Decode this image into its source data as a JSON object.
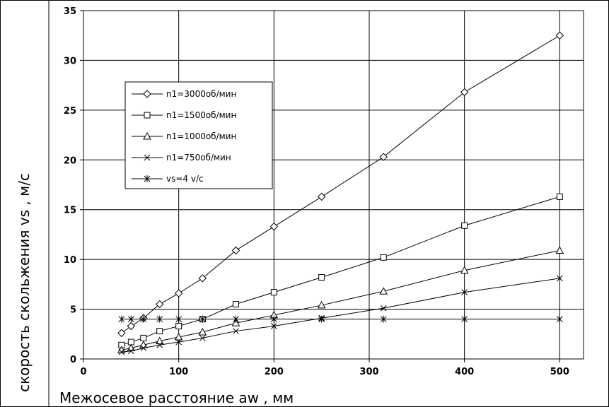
{
  "chart_data": {
    "type": "line",
    "title": "",
    "xlabel": "Межосевое расстояние aw , мм",
    "ylabel": "скорость скольжения vs , м/с",
    "xlim": [
      0,
      525
    ],
    "ylim": [
      0,
      35
    ],
    "x_ticks": [
      0,
      100,
      200,
      300,
      400,
      500
    ],
    "y_ticks": [
      0,
      5,
      10,
      15,
      20,
      25,
      30,
      35
    ],
    "grid": true,
    "legend_position": "upper-left",
    "series": [
      {
        "name": "n1=3000об/мин",
        "marker": "diamond",
        "x": [
          40,
          50,
          63,
          80,
          100,
          125,
          160,
          200,
          250,
          315,
          400,
          500
        ],
        "y": [
          2.6,
          3.3,
          4.1,
          5.5,
          6.6,
          8.1,
          10.9,
          13.3,
          16.3,
          20.3,
          26.8,
          32.5
        ]
      },
      {
        "name": "n1=1500об/мин",
        "marker": "square",
        "x": [
          40,
          50,
          63,
          80,
          100,
          125,
          160,
          200,
          250,
          315,
          400,
          500
        ],
        "y": [
          1.4,
          1.7,
          2.1,
          2.8,
          3.3,
          4.0,
          5.5,
          6.7,
          8.2,
          10.2,
          13.4,
          16.3
        ]
      },
      {
        "name": "n1=1000об/мин",
        "marker": "triangle",
        "x": [
          40,
          50,
          63,
          80,
          100,
          125,
          160,
          200,
          250,
          315,
          400,
          500
        ],
        "y": [
          0.9,
          1.1,
          1.4,
          1.8,
          2.2,
          2.7,
          3.6,
          4.4,
          5.4,
          6.8,
          8.9,
          10.9
        ]
      },
      {
        "name": "n1=750об/мин",
        "marker": "x",
        "x": [
          40,
          50,
          63,
          80,
          100,
          125,
          160,
          200,
          250,
          315,
          400,
          500
        ],
        "y": [
          0.7,
          0.8,
          1.1,
          1.4,
          1.7,
          2.1,
          2.8,
          3.3,
          4.1,
          5.1,
          6.7,
          8.1
        ]
      },
      {
        "name": "vs=4 v/c",
        "marker": "star",
        "x": [
          40,
          50,
          63,
          80,
          100,
          125,
          160,
          200,
          250,
          315,
          400,
          500
        ],
        "y": [
          4,
          4,
          4,
          4,
          4,
          4,
          4,
          4,
          4,
          4,
          4,
          4
        ]
      }
    ]
  }
}
